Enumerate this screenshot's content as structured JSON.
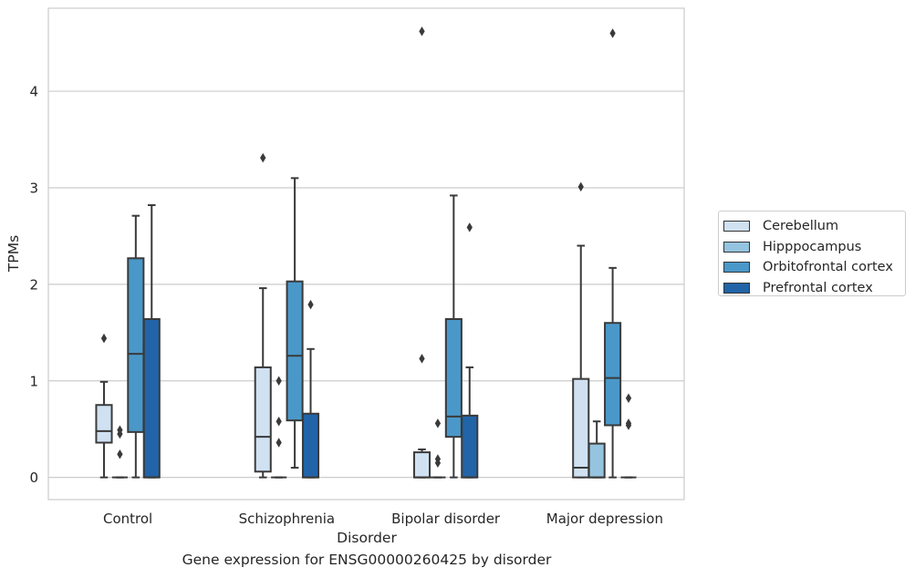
{
  "chart_data": {
    "type": "box",
    "xlabel": "Disorder",
    "ylabel": "TPMs",
    "caption": "Gene expression for ENSG00000260425 by disorder",
    "categories": [
      "Control",
      "Schizophrenia",
      "Bipolar disorder",
      "Major depression"
    ],
    "yticks": [
      "0",
      "1",
      "2",
      "3",
      "4"
    ],
    "ylim": [
      -0.23,
      4.86
    ],
    "grid": true,
    "legend_position": "right",
    "series": [
      {
        "name": "Cerebellum",
        "color": "#d0e1f2",
        "boxes": [
          {
            "whislo": 0,
            "q1": 0.36,
            "med": 0.48,
            "q3": 0.75,
            "whishi": 0.99,
            "fliers": [
              1.44
            ]
          },
          {
            "whislo": 0,
            "q1": 0.06,
            "med": 0.42,
            "q3": 1.14,
            "whishi": 1.96,
            "fliers": [
              3.31
            ]
          },
          {
            "whislo": 0,
            "q1": 0,
            "med": 0,
            "q3": 0.26,
            "whishi": 0.29,
            "fliers": [
              1.23,
              4.62
            ]
          },
          {
            "whislo": 0,
            "q1": 0,
            "med": 0.1,
            "q3": 1.02,
            "whishi": 2.4,
            "fliers": [
              3.01
            ]
          }
        ]
      },
      {
        "name": "Hipppocampus",
        "color": "#94c4df",
        "boxes": [
          {
            "whislo": 0,
            "q1": 0,
            "med": 0,
            "q3": 0,
            "whishi": 0,
            "fliers": [
              0.24,
              0.45,
              0.49
            ]
          },
          {
            "whislo": 0,
            "q1": 0,
            "med": 0,
            "q3": 0,
            "whishi": 0,
            "fliers": [
              0.36,
              0.58,
              1.0
            ]
          },
          {
            "whislo": 0,
            "q1": 0,
            "med": 0,
            "q3": 0,
            "whishi": 0,
            "fliers": [
              0.15,
              0.19,
              0.56
            ]
          },
          {
            "whislo": 0,
            "q1": 0,
            "med": 0,
            "q3": 0.35,
            "whishi": 0.58,
            "fliers": []
          }
        ]
      },
      {
        "name": "Orbitofrontal cortex",
        "color": "#4a98c9",
        "boxes": [
          {
            "whislo": 0,
            "q1": 0.47,
            "med": 1.28,
            "q3": 2.27,
            "whishi": 2.71,
            "fliers": []
          },
          {
            "whislo": 0.1,
            "q1": 0.59,
            "med": 1.26,
            "q3": 2.03,
            "whishi": 3.1,
            "fliers": []
          },
          {
            "whislo": 0,
            "q1": 0.42,
            "med": 0.63,
            "q3": 1.64,
            "whishi": 2.92,
            "fliers": []
          },
          {
            "whislo": 0,
            "q1": 0.54,
            "med": 1.03,
            "q3": 1.6,
            "whishi": 2.17,
            "fliers": [
              4.6
            ]
          }
        ]
      },
      {
        "name": "Prefrontal cortex",
        "color": "#2264a8",
        "boxes": [
          {
            "whislo": 0,
            "q1": 0,
            "med": 0,
            "q3": 1.64,
            "whishi": 2.82,
            "fliers": []
          },
          {
            "whislo": 0,
            "q1": 0,
            "med": 0,
            "q3": 0.66,
            "whishi": 1.33,
            "fliers": [
              1.79
            ]
          },
          {
            "whislo": 0,
            "q1": 0,
            "med": 0,
            "q3": 0.64,
            "whishi": 1.14,
            "fliers": [
              2.59
            ]
          },
          {
            "whislo": 0,
            "q1": 0,
            "med": 0,
            "q3": 0,
            "whishi": 0,
            "fliers": [
              0.54,
              0.56,
              0.82
            ]
          }
        ]
      }
    ]
  }
}
